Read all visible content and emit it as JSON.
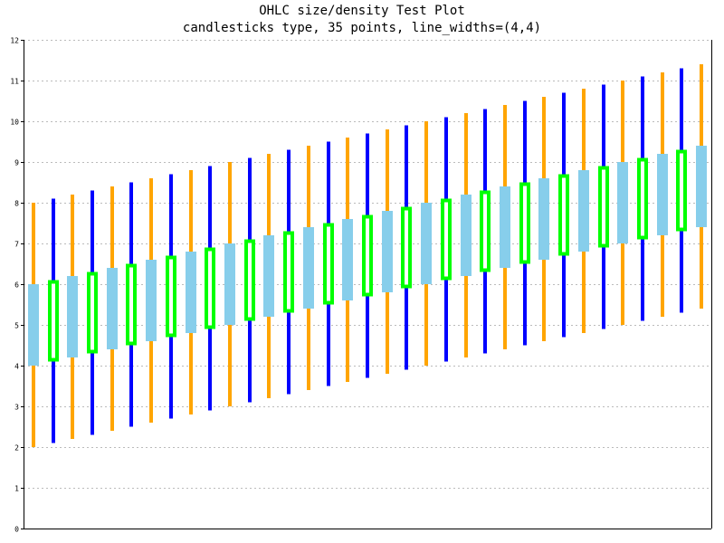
{
  "chart_data": {
    "type": "candlestick",
    "title": "OHLC size/density Test Plot",
    "subtitle": "candlesticks type, 35 points, line_widths=(4,4)",
    "ylim": [
      0,
      12
    ],
    "yticks": [
      0,
      1,
      2,
      3,
      4,
      5,
      6,
      7,
      8,
      9,
      10,
      11,
      12
    ],
    "grid": "horizontal dotted",
    "colors": {
      "up_body": "#87ceeb",
      "up_wick": "#ffa500",
      "down_body_outline": "#00ff00",
      "down_wick": "#0000ff",
      "grid": "#bbbbbb",
      "axis": "#000000"
    },
    "points": [
      {
        "open": 4.0,
        "high": 8.0,
        "low": 2.0,
        "close": 6.0
      },
      {
        "open": 6.1,
        "high": 8.1,
        "low": 2.1,
        "close": 4.1
      },
      {
        "open": 4.2,
        "high": 8.2,
        "low": 2.2,
        "close": 6.2
      },
      {
        "open": 6.3,
        "high": 8.3,
        "low": 2.3,
        "close": 4.3
      },
      {
        "open": 4.4,
        "high": 8.4,
        "low": 2.4,
        "close": 6.4
      },
      {
        "open": 6.5,
        "high": 8.5,
        "low": 2.5,
        "close": 4.5
      },
      {
        "open": 4.6,
        "high": 8.6,
        "low": 2.6,
        "close": 6.6
      },
      {
        "open": 6.7,
        "high": 8.7,
        "low": 2.7,
        "close": 4.7
      },
      {
        "open": 4.8,
        "high": 8.8,
        "low": 2.8,
        "close": 6.8
      },
      {
        "open": 6.9,
        "high": 8.9,
        "low": 2.9,
        "close": 4.9
      },
      {
        "open": 5.0,
        "high": 9.0,
        "low": 3.0,
        "close": 7.0
      },
      {
        "open": 7.1,
        "high": 9.1,
        "low": 3.1,
        "close": 5.1
      },
      {
        "open": 5.2,
        "high": 9.2,
        "low": 3.2,
        "close": 7.2
      },
      {
        "open": 7.3,
        "high": 9.3,
        "low": 3.3,
        "close": 5.3
      },
      {
        "open": 5.4,
        "high": 9.4,
        "low": 3.4,
        "close": 7.4
      },
      {
        "open": 7.5,
        "high": 9.5,
        "low": 3.5,
        "close": 5.5
      },
      {
        "open": 5.6,
        "high": 9.6,
        "low": 3.6,
        "close": 7.6
      },
      {
        "open": 7.7,
        "high": 9.7,
        "low": 3.7,
        "close": 5.7
      },
      {
        "open": 5.8,
        "high": 9.8,
        "low": 3.8,
        "close": 7.8
      },
      {
        "open": 7.9,
        "high": 9.9,
        "low": 3.9,
        "close": 5.9
      },
      {
        "open": 6.0,
        "high": 10.0,
        "low": 4.0,
        "close": 8.0
      },
      {
        "open": 8.1,
        "high": 10.1,
        "low": 4.1,
        "close": 6.1
      },
      {
        "open": 6.2,
        "high": 10.2,
        "low": 4.2,
        "close": 8.2
      },
      {
        "open": 8.3,
        "high": 10.3,
        "low": 4.3,
        "close": 6.3
      },
      {
        "open": 6.4,
        "high": 10.4,
        "low": 4.4,
        "close": 8.4
      },
      {
        "open": 8.5,
        "high": 10.5,
        "low": 4.5,
        "close": 6.5
      },
      {
        "open": 6.6,
        "high": 10.6,
        "low": 4.6,
        "close": 8.6
      },
      {
        "open": 8.7,
        "high": 10.7,
        "low": 4.7,
        "close": 6.7
      },
      {
        "open": 6.8,
        "high": 10.8,
        "low": 4.8,
        "close": 8.8
      },
      {
        "open": 8.9,
        "high": 10.9,
        "low": 4.9,
        "close": 6.9
      },
      {
        "open": 7.0,
        "high": 11.0,
        "low": 5.0,
        "close": 9.0
      },
      {
        "open": 9.1,
        "high": 11.1,
        "low": 5.1,
        "close": 7.1
      },
      {
        "open": 7.2,
        "high": 11.2,
        "low": 5.2,
        "close": 9.2
      },
      {
        "open": 9.3,
        "high": 11.3,
        "low": 5.3,
        "close": 7.3
      },
      {
        "open": 7.4,
        "high": 11.4,
        "low": 5.4,
        "close": 9.4
      }
    ]
  }
}
